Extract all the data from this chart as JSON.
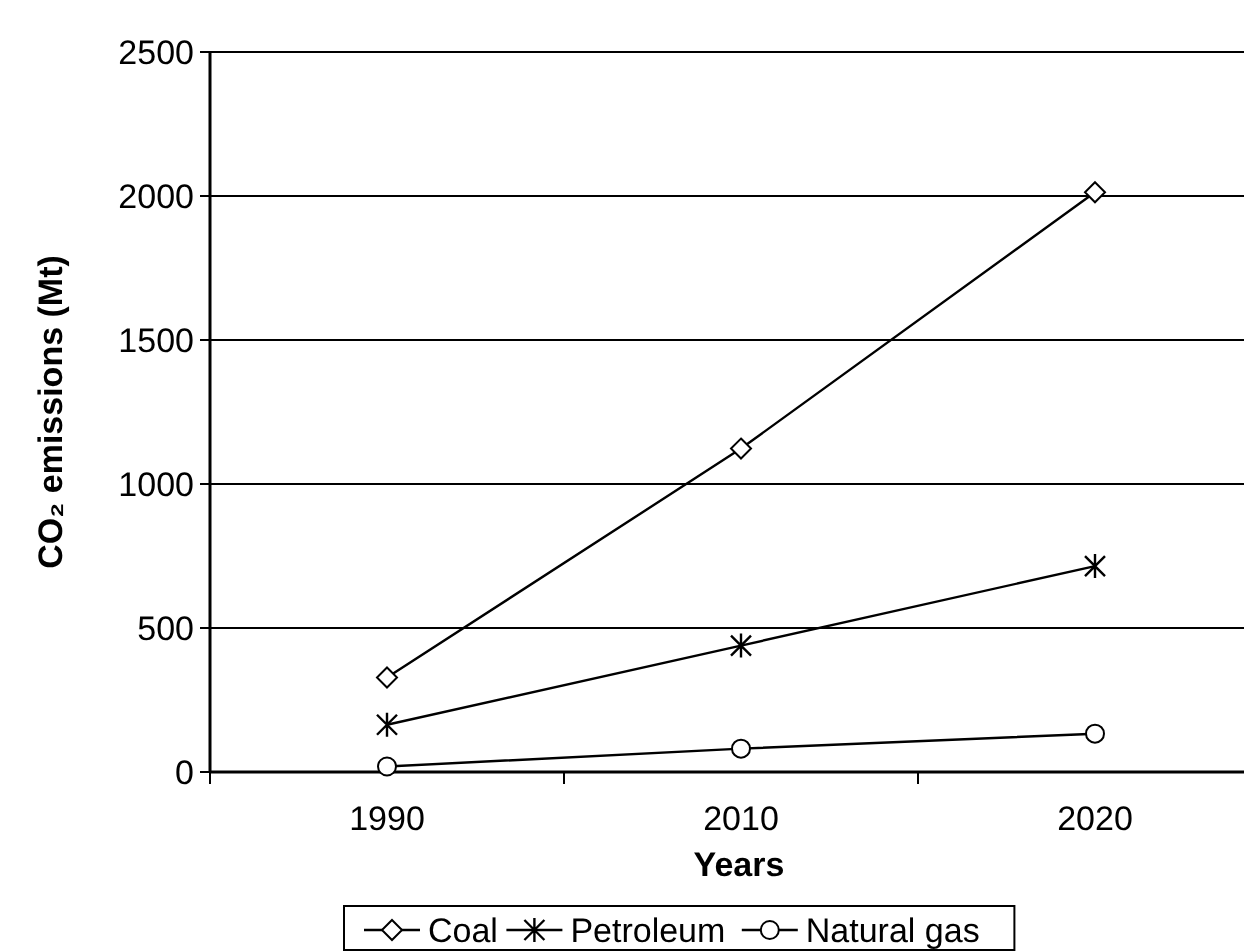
{
  "chart_data": {
    "type": "line",
    "xlabel": "Years",
    "ylabel": "CO₂ emissions (Mt)",
    "categories": [
      "1990",
      "2010",
      "2020"
    ],
    "series": [
      {
        "name": "Coal",
        "color": "#000000",
        "marker": "diamond",
        "values": [
          328,
          1123,
          2013
        ]
      },
      {
        "name": "Petroleum",
        "color": "#000000",
        "marker": "cross",
        "values": [
          164,
          439,
          715
        ]
      },
      {
        "name": "Natural gas",
        "color": "#000000",
        "marker": "circle",
        "values": [
          19,
          81,
          133
        ]
      }
    ],
    "ylim": [
      0,
      2500
    ],
    "yticks": [
      0,
      500,
      1000,
      1500,
      2000,
      2500
    ],
    "grid": "y",
    "legend": "bottom",
    "line_style": "solid"
  }
}
